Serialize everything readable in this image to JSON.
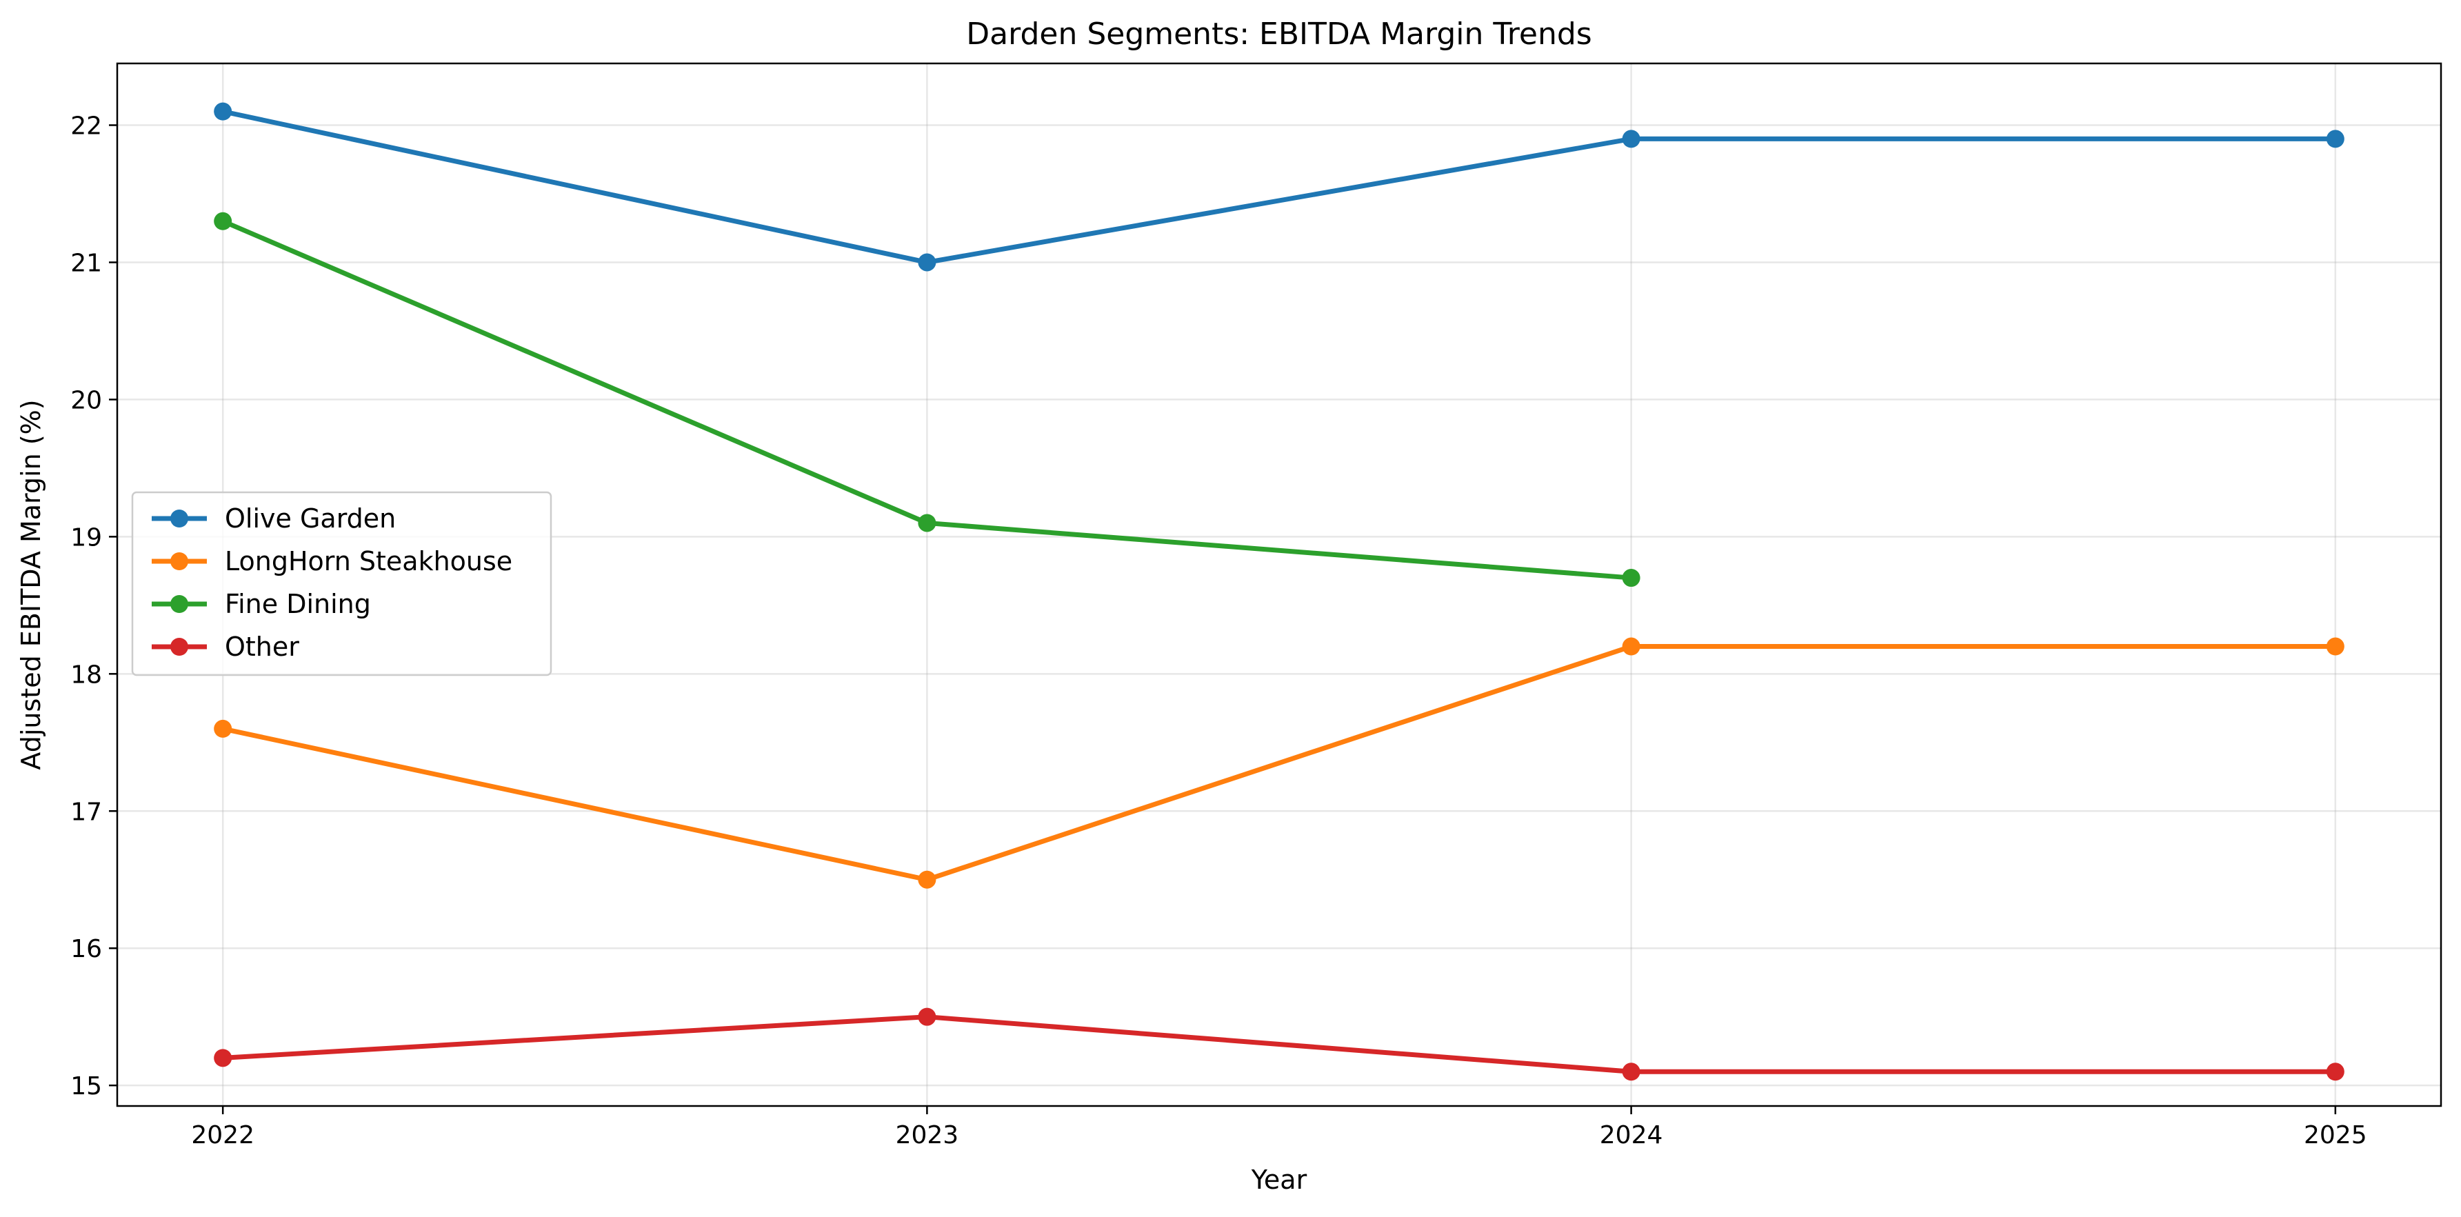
{
  "chart_data": {
    "type": "line",
    "title": "Darden Segments: EBITDA Margin Trends",
    "xlabel": "Year",
    "ylabel": "Adjusted EBITDA Margin (%)",
    "x": [
      2022,
      2023,
      2024,
      2025
    ],
    "x_tick_labels": [
      "2022",
      "2023",
      "2024",
      "2025"
    ],
    "xlim": [
      2021.85,
      2025.15
    ],
    "ylim": [
      14.85,
      22.45
    ],
    "y_ticks": [
      15,
      16,
      17,
      18,
      19,
      20,
      21,
      22
    ],
    "y_tick_labels": [
      "15",
      "16",
      "17",
      "18",
      "19",
      "20",
      "21",
      "22"
    ],
    "grid": true,
    "legend_position": "center-left",
    "series": [
      {
        "name": "Olive Garden",
        "color": "#1f77b4",
        "values": [
          22.1,
          21.0,
          21.9,
          21.9
        ]
      },
      {
        "name": "LongHorn Steakhouse",
        "color": "#ff7f0e",
        "values": [
          17.6,
          16.5,
          18.2,
          18.2
        ]
      },
      {
        "name": "Fine Dining",
        "color": "#2ca02c",
        "values": [
          21.3,
          19.1,
          18.7,
          null
        ]
      },
      {
        "name": "Other",
        "color": "#d62728",
        "values": [
          15.2,
          15.5,
          15.1,
          15.1
        ]
      }
    ]
  }
}
